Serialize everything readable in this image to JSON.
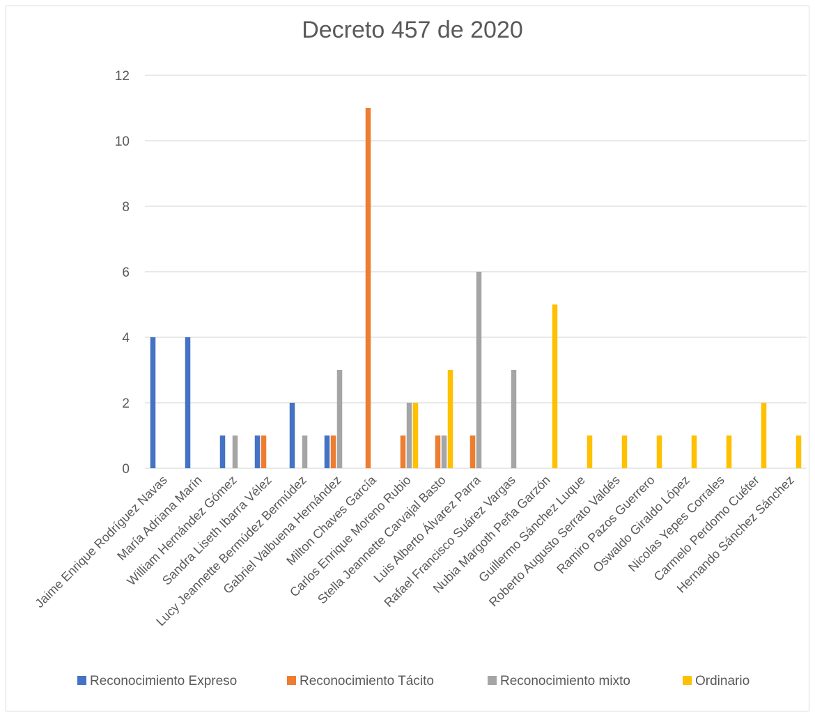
{
  "chart_data": {
    "type": "bar",
    "title": "Decreto 457 de 2020",
    "xlabel": "",
    "ylabel": "",
    "ylim": [
      0,
      12
    ],
    "yticks": [
      0,
      2,
      4,
      6,
      8,
      10,
      12
    ],
    "grid": true,
    "legend_position": "bottom",
    "categories": [
      "Jaime Enrique Rodríguez Navas",
      "María Adriana Marín",
      "William Hernández Gómez",
      "Sandra Liseth Ibarra Vélez",
      "Lucy Jeannette Bermúdez Bermúdez",
      "Gabriel Valbuena Hernández",
      "Milton Chaves García",
      "Carlos Enrique Moreno Rubio",
      "Stella Jeannette Carvajal Basto",
      "Luis Alberto Álvarez Parra",
      "Rafael Francisco Suárez Vargas",
      "Nubia Margoth Peña Garzón",
      "Guillermo Sánchez Luque",
      "Roberto Augusto Serrato Valdés",
      "Ramiro Pazos Guerrero",
      "Oswaldo Giraldo López",
      "Nicolas Yepes Corrales",
      "Carmelo Perdomo Cuéter",
      "Hernando Sánchez Sánchez"
    ],
    "series": [
      {
        "name": "Reconocimiento Expreso",
        "color": "#4472C4",
        "values": [
          4,
          4,
          1,
          1,
          2,
          1,
          0,
          0,
          0,
          0,
          0,
          0,
          0,
          0,
          0,
          0,
          0,
          0,
          0
        ]
      },
      {
        "name": "Reconocimiento Tácito",
        "color": "#ED7D31",
        "values": [
          0,
          0,
          0,
          1,
          0,
          1,
          11,
          1,
          1,
          1,
          0,
          0,
          0,
          0,
          0,
          0,
          0,
          0,
          0
        ]
      },
      {
        "name": "Reconocimiento mixto",
        "color": "#A5A5A5",
        "values": [
          0,
          0,
          1,
          0,
          1,
          3,
          0,
          2,
          1,
          6,
          3,
          0,
          0,
          0,
          0,
          0,
          0,
          0,
          0
        ]
      },
      {
        "name": "Ordinario",
        "color": "#FFC000",
        "values": [
          0,
          0,
          0,
          0,
          0,
          0,
          0,
          2,
          3,
          0,
          0,
          5,
          1,
          1,
          1,
          1,
          1,
          2,
          1
        ]
      }
    ]
  }
}
